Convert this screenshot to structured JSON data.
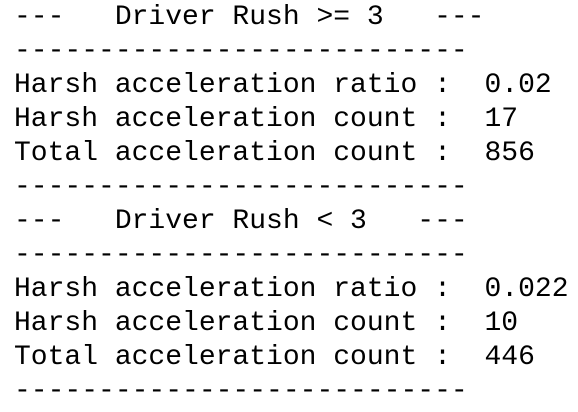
{
  "lines": [
    "---   Driver Rush >= 3   ---",
    "---------------------------",
    "Harsh acceleration ratio :  0.02",
    "Harsh acceleration count :  17",
    "Total acceleration count :  856",
    "---------------------------",
    "---   Driver Rush < 3   ---",
    "---------------------------",
    "Harsh acceleration ratio :  0.022",
    "Harsh acceleration count :  10",
    "Total acceleration count :  446",
    "---------------------------"
  ]
}
